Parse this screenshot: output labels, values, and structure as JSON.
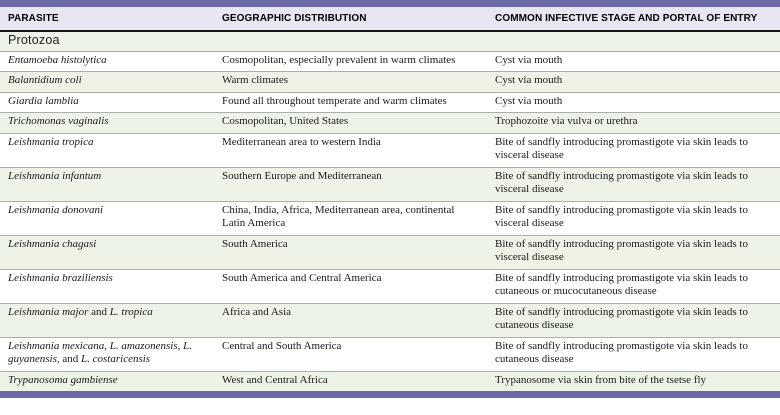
{
  "colors": {
    "accent_bar": "#6e6aa8",
    "header_band": "#e8e6f2",
    "row_shade_green": "#edf3e6"
  },
  "table": {
    "columns": [
      "PARASITE",
      "GEOGRAPHIC DISTRIBUTION",
      "COMMON INFECTIVE STAGE AND PORTAL OF ENTRY"
    ],
    "section_label": "Protozoa",
    "rows": [
      {
        "name_segments": [
          {
            "text": "Entamoeba histolytica",
            "italic": true
          }
        ],
        "distribution": "Cosmopolitan, especially prevalent in warm climates",
        "infective_stage": "Cyst via mouth"
      },
      {
        "name_segments": [
          {
            "text": "Balantidium coli",
            "italic": true
          }
        ],
        "distribution": "Warm climates",
        "infective_stage": "Cyst via mouth"
      },
      {
        "name_segments": [
          {
            "text": "Giardia lamblia",
            "italic": true
          }
        ],
        "distribution": "Found all throughout temperate and warm climates",
        "infective_stage": "Cyst via mouth"
      },
      {
        "name_segments": [
          {
            "text": "Trichomonas vaginalis",
            "italic": true
          }
        ],
        "distribution": "Cosmopolitan, United States",
        "infective_stage": "Trophozoite via vulva or urethra"
      },
      {
        "name_segments": [
          {
            "text": "Leishmania tropica",
            "italic": true
          }
        ],
        "distribution": "Mediterranean area to western India",
        "infective_stage": "Bite of sandfly introducing promastigote via skin leads to visceral disease"
      },
      {
        "name_segments": [
          {
            "text": "Leishmania infantum",
            "italic": true
          }
        ],
        "distribution": "Southern Europe and Mediterranean",
        "infective_stage": "Bite of sandfly introducing promastigote via skin leads to visceral disease"
      },
      {
        "name_segments": [
          {
            "text": "Leishmania donovani",
            "italic": true
          }
        ],
        "distribution": "China, India, Africa, Mediterranean area, continental Latin America",
        "infective_stage": "Bite of sandfly introducing promastigote via skin leads to visceral disease"
      },
      {
        "name_segments": [
          {
            "text": "Leishmania chagasi",
            "italic": true
          }
        ],
        "distribution": "South America",
        "infective_stage": "Bite of sandfly introducing promastigote via skin leads to visceral disease"
      },
      {
        "name_segments": [
          {
            "text": "Leishmania braziliensis",
            "italic": true
          }
        ],
        "distribution": "South America and Central America",
        "infective_stage": "Bite of sandfly introducing promastigote via skin leads to cutaneous or mucocutaneous disease"
      },
      {
        "name_segments": [
          {
            "text": "Leishmania major",
            "italic": true
          },
          {
            "text": " and ",
            "italic": false
          },
          {
            "text": "L. tropica",
            "italic": true
          }
        ],
        "distribution": "Africa and Asia",
        "infective_stage": "Bite of sandfly introducing promastigote via skin leads to cutaneous disease"
      },
      {
        "name_segments": [
          {
            "text": "Leishmania mexicana, L. amazonensis, L. guyanensis,",
            "italic": true
          },
          {
            "text": " and ",
            "italic": false
          },
          {
            "text": "L. costaricensis",
            "italic": true
          }
        ],
        "distribution": "Central and South America",
        "infective_stage": "Bite of sandfly introducing promastigote via skin leads to cutaneous disease"
      },
      {
        "name_segments": [
          {
            "text": "Trypanosoma gambiense",
            "italic": true
          }
        ],
        "distribution": "West and Central Africa",
        "infective_stage": "Trypanosome via skin from bite of the tsetse fly"
      }
    ]
  }
}
